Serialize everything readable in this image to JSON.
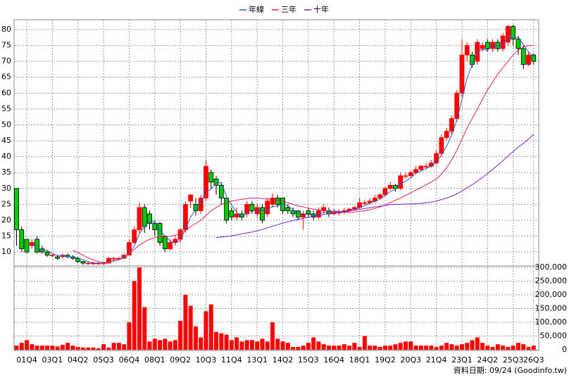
{
  "chart_data": {
    "type": "candlestick",
    "categories": [
      null,
      null,
      "01Q4",
      null,
      null,
      null,
      null,
      "03Q1",
      null,
      null,
      null,
      null,
      "04Q2",
      null,
      null,
      null,
      null,
      "05Q3",
      null,
      null,
      null,
      null,
      "06Q4",
      null,
      null,
      null,
      null,
      "08Q1",
      null,
      null,
      null,
      null,
      "09Q2",
      null,
      null,
      null,
      null,
      "10Q3",
      null,
      null,
      null,
      null,
      "11Q4",
      null,
      null,
      null,
      null,
      "13Q1",
      null,
      null,
      null,
      null,
      "14Q2",
      null,
      null,
      null,
      null,
      "15Q3",
      null,
      null,
      null,
      null,
      "16Q4",
      null,
      null,
      null,
      null,
      "18Q1",
      null,
      null,
      null,
      null,
      "19Q2",
      null,
      null,
      null,
      null,
      "20Q3",
      null,
      null,
      null,
      null,
      "21Q4",
      null,
      null,
      null,
      null,
      "23Q1",
      null,
      null,
      null,
      null,
      "24Q2",
      null,
      null,
      null,
      null,
      "25Q3",
      null,
      null,
      null,
      "26Q3"
    ],
    "open": [
      30,
      17,
      14,
      12,
      14,
      11,
      10,
      9,
      8.5,
      8.5,
      9,
      8.5,
      8,
      7,
      6.5,
      6.5,
      6.5,
      6.5,
      6.5,
      8,
      8,
      8,
      9,
      13,
      17,
      24,
      22,
      19,
      19,
      15,
      11,
      13,
      14,
      17,
      26,
      25,
      23,
      27,
      35,
      33,
      31,
      27,
      23,
      21,
      22,
      22,
      25,
      22,
      24,
      22,
      25,
      27,
      27,
      24,
      23,
      23,
      21,
      23,
      22,
      21,
      23,
      23,
      22,
      22.5,
      22.5,
      23,
      23.5,
      24,
      25.5,
      25.5,
      26,
      27,
      28,
      30,
      31,
      30,
      34,
      34,
      35,
      36,
      37,
      37,
      38,
      41,
      46,
      48,
      52,
      60,
      72,
      72,
      70,
      74,
      76,
      74,
      76,
      74,
      76,
      81,
      77,
      74,
      69,
      72
    ],
    "high": [
      30,
      18,
      14,
      14,
      15,
      12,
      10.5,
      9.5,
      9,
      9.5,
      9.5,
      9,
      8.5,
      7,
      7,
      7,
      7,
      7,
      8.5,
      8.5,
      8.5,
      9.5,
      14,
      18,
      25.5,
      25,
      23,
      20,
      19.5,
      15,
      14,
      15,
      17.5,
      26,
      28,
      27,
      28,
      39,
      36,
      34,
      32,
      27,
      24,
      24,
      23,
      26,
      26,
      25,
      25,
      27,
      28.5,
      28,
      27,
      25,
      24,
      23,
      23,
      24,
      23,
      24,
      25,
      24,
      23.5,
      23.5,
      24,
      24,
      24.5,
      27,
      26.5,
      27,
      28,
      28.5,
      30.5,
      32,
      31.5,
      35,
      35,
      35.5,
      37,
      37.5,
      38,
      39,
      42,
      47,
      49,
      53,
      61,
      77,
      76,
      73,
      77,
      76,
      77,
      77,
      77,
      79,
      81.5,
      81.5,
      78,
      75,
      73,
      72.5
    ],
    "low": [
      12,
      10,
      9.5,
      11,
      9.5,
      9.5,
      8.5,
      8.5,
      7.5,
      8,
      8,
      7.5,
      6.5,
      6,
      6,
      6,
      6,
      6,
      6.5,
      7,
      7.5,
      8,
      9,
      12.5,
      16,
      16,
      17,
      15,
      12,
      10,
      10.5,
      12,
      13,
      16,
      24,
      21.5,
      22,
      26,
      30,
      28,
      25,
      19,
      20,
      20,
      20,
      21,
      22,
      21,
      19,
      21,
      24,
      24,
      22,
      22,
      21,
      20,
      17,
      21,
      20,
      20.5,
      22,
      21,
      21.5,
      21.5,
      22,
      22.5,
      23,
      23.5,
      24.5,
      25,
      25.5,
      26.5,
      27.5,
      29.5,
      29,
      29.5,
      33,
      33.5,
      34.5,
      35.5,
      36,
      36.5,
      37.5,
      40,
      45,
      47,
      51,
      59,
      70,
      68,
      69,
      73,
      73,
      73,
      73,
      73,
      75,
      75,
      72,
      67.5,
      68.5,
      69
    ],
    "close": [
      17,
      11,
      10,
      13,
      10,
      10,
      9,
      9,
      8,
      9,
      8.5,
      8,
      7,
      6.5,
      6.5,
      6.5,
      6.5,
      6.5,
      8,
      8,
      8,
      9,
      13,
      17,
      24,
      18,
      19,
      17,
      13,
      11,
      13,
      14,
      17,
      25,
      28,
      23,
      27,
      37,
      32,
      31,
      27,
      20,
      21,
      22,
      21,
      25,
      23,
      24,
      20,
      26,
      27,
      25,
      23,
      23,
      22,
      21,
      22,
      22,
      21,
      23,
      24,
      22,
      22.5,
      22.5,
      23,
      23.5,
      24,
      25.5,
      25.5,
      26,
      27,
      28,
      30,
      31,
      30,
      34,
      34,
      35,
      36,
      37,
      37,
      38,
      41,
      46,
      48,
      52,
      60,
      72,
      75,
      69,
      76,
      75,
      74,
      76,
      74,
      78,
      81,
      77,
      74,
      69,
      72,
      70
    ],
    "up_color": "#ff0000",
    "down_color": "#00cc00",
    "series": [
      {
        "name": "年線",
        "color": "#1f5fd0",
        "values": [
          null,
          null,
          null,
          12.8,
          11,
          10.8,
          10.5,
          9.5,
          9,
          8.8,
          8.6,
          8.4,
          8.1,
          7.5,
          7,
          6.6,
          6.5,
          6.5,
          6.9,
          7.3,
          7.6,
          8.3,
          9.5,
          11.8,
          15.8,
          18,
          19.5,
          19.5,
          16.8,
          15,
          13.5,
          12.8,
          13.8,
          17.3,
          21,
          23.3,
          25.8,
          28.8,
          29.8,
          31.8,
          31.8,
          27.5,
          24.8,
          22.5,
          21,
          22.3,
          22.8,
          23.3,
          23,
          23.3,
          24.3,
          24.5,
          25.3,
          24.5,
          23.3,
          22.3,
          22,
          21.8,
          21.5,
          22,
          22.5,
          22.5,
          22.9,
          22.8,
          22.5,
          22.9,
          23.3,
          24,
          24.6,
          25.3,
          26,
          26.6,
          27.8,
          29,
          29.8,
          31.3,
          32.3,
          33.3,
          34.8,
          35.5,
          36.3,
          37,
          38.3,
          40.5,
          43.3,
          46.8,
          51.5,
          58,
          64.8,
          69,
          73,
          73.8,
          73.5,
          75.3,
          74.8,
          75.5,
          77.3,
          77.5,
          77.5,
          75.3,
          73,
          71.3
        ]
      },
      {
        "name": "三年",
        "color": "#e0205a",
        "values": [
          null,
          null,
          null,
          null,
          null,
          null,
          null,
          null,
          null,
          null,
          null,
          10.5,
          9.8,
          9,
          8.2,
          7.5,
          7,
          6.7,
          6.8,
          7.2,
          7.8,
          8.5,
          9.5,
          10.8,
          12.2,
          13.2,
          14,
          14.5,
          14.8,
          14.8,
          15,
          15.3,
          15.8,
          16.8,
          18,
          19,
          20,
          21.5,
          23,
          24,
          25,
          25.5,
          26,
          26.3,
          26.6,
          26.8,
          27,
          27,
          26.8,
          26.7,
          26.5,
          26.3,
          26,
          25.5,
          25,
          24.5,
          24.2,
          23.8,
          23.5,
          23.2,
          23,
          22.8,
          22.7,
          22.6,
          22.5,
          22.5,
          22.6,
          22.8,
          23,
          23.3,
          23.7,
          24.2,
          24.8,
          25.5,
          26.3,
          27,
          27.8,
          28.6,
          29.5,
          30.3,
          31.2,
          32,
          33,
          34.5,
          36.5,
          39,
          42,
          45.5,
          49,
          52,
          55,
          58,
          61,
          63.5,
          66,
          68,
          70,
          72,
          73.5,
          74.5,
          75,
          75
        ]
      },
      {
        "name": "十年",
        "color": "#7a22c8",
        "values": [
          null,
          null,
          null,
          null,
          null,
          null,
          null,
          null,
          null,
          null,
          null,
          null,
          null,
          null,
          null,
          null,
          null,
          null,
          null,
          null,
          null,
          null,
          null,
          null,
          null,
          null,
          null,
          null,
          null,
          null,
          null,
          null,
          null,
          null,
          null,
          null,
          null,
          null,
          null,
          14.5,
          14.7,
          14.9,
          15.1,
          15.4,
          15.7,
          16,
          16.3,
          16.7,
          17.1,
          17.6,
          18.1,
          18.6,
          19.1,
          19.5,
          19.9,
          20.3,
          20.6,
          20.9,
          21.2,
          21.5,
          21.8,
          22,
          22.3,
          22.5,
          22.7,
          23,
          23.2,
          23.4,
          23.7,
          23.9,
          24.2,
          24.4,
          24.7,
          24.9,
          25,
          25,
          25.1,
          25.1,
          25.2,
          25.3,
          25.5,
          25.7,
          26,
          26.5,
          27,
          27.6,
          28.3,
          29.2,
          30.2,
          31.2,
          32.3,
          33.5,
          34.7,
          36,
          37.3,
          38.7,
          40.2,
          41.6,
          43,
          44.2,
          45.5,
          47
        ]
      }
    ],
    "ylim": [
      5.6,
      83.1
    ],
    "yticks": [
      10,
      15,
      20,
      25,
      30,
      35,
      40,
      45,
      50,
      55,
      60,
      65,
      70,
      75,
      80
    ],
    "grid": true,
    "volume": {
      "type": "bar",
      "color": "#ff0000",
      "values": [
        15000,
        25000,
        35000,
        20000,
        15000,
        15000,
        15000,
        15000,
        12000,
        18000,
        25000,
        15000,
        10000,
        8000,
        8000,
        8000,
        5000,
        20000,
        8000,
        25000,
        25000,
        20000,
        100000,
        250000,
        300000,
        155000,
        30000,
        40000,
        35000,
        40000,
        30000,
        35000,
        105000,
        200000,
        160000,
        85000,
        45000,
        140000,
        165000,
        65000,
        60000,
        55000,
        35000,
        45000,
        30000,
        35000,
        35000,
        30000,
        40000,
        30000,
        100000,
        40000,
        30000,
        25000,
        10000,
        10000,
        15000,
        25000,
        45000,
        30000,
        20000,
        15000,
        15000,
        15000,
        20000,
        15000,
        25000,
        10000,
        50000,
        15000,
        15000,
        10000,
        15000,
        15000,
        20000,
        25000,
        30000,
        30000,
        15000,
        15000,
        15000,
        15000,
        10000,
        15000,
        25000,
        20000,
        15000,
        20000,
        25000,
        35000,
        45000,
        25000,
        15000,
        10000,
        20000,
        15000,
        10000,
        15000,
        25000,
        20000,
        10000,
        15000
      ],
      "ylim": [
        0,
        305000
      ],
      "yticks": [
        0,
        {
          "value": 50000,
          "label": "50,000"
        },
        {
          "value": 100000,
          "label": "100,000"
        },
        {
          "value": 150000,
          "label": "150,000"
        },
        {
          "value": 200000,
          "label": "200,000"
        },
        {
          "value": 250000,
          "label": "250,000"
        },
        {
          "value": 300000,
          "label": "300,000"
        }
      ]
    },
    "footnote": "資料日期: 09/24 (Goodinfo.tw)"
  }
}
